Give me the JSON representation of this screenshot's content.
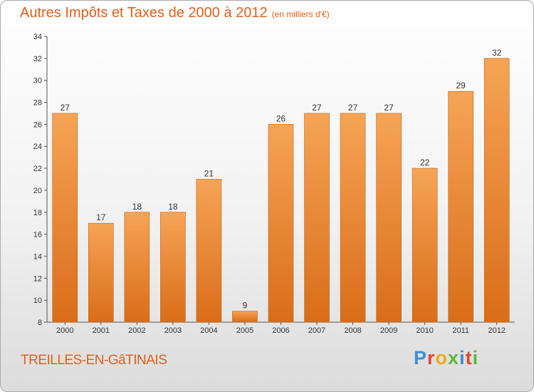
{
  "title": "Autres Impôts et Taxes de 2000 à 2012",
  "unit": "(en milliers d'€)",
  "commune": "TREILLES-EN-GâTINAIS",
  "logo": {
    "letters": [
      "P",
      "r",
      "o",
      "x",
      "i",
      "t",
      "i"
    ],
    "colors": [
      "#3b8fd6",
      "#e8442a",
      "#f2a81d",
      "#5cb83c",
      "#3b8fd6",
      "#e8442a",
      "#5cb83c"
    ]
  },
  "colors": {
    "bar_top": "#f6a456",
    "bar_bottom": "#d96d19",
    "title": "#e0601b"
  },
  "chart_data": {
    "type": "bar",
    "title": "Autres Impôts et Taxes de 2000 à 2012",
    "categories": [
      "2000",
      "2001",
      "2002",
      "2003",
      "2004",
      "2005",
      "2006",
      "2007",
      "2008",
      "2009",
      "2010",
      "2011",
      "2012"
    ],
    "values": [
      27,
      17,
      18,
      18,
      21,
      9,
      26,
      27,
      27,
      27,
      22,
      29,
      32
    ],
    "ylim": [
      8,
      34
    ],
    "yticks": [
      8,
      10,
      12,
      14,
      16,
      18,
      20,
      22,
      24,
      26,
      28,
      30,
      32,
      34
    ],
    "grid": false,
    "legend": "none"
  }
}
